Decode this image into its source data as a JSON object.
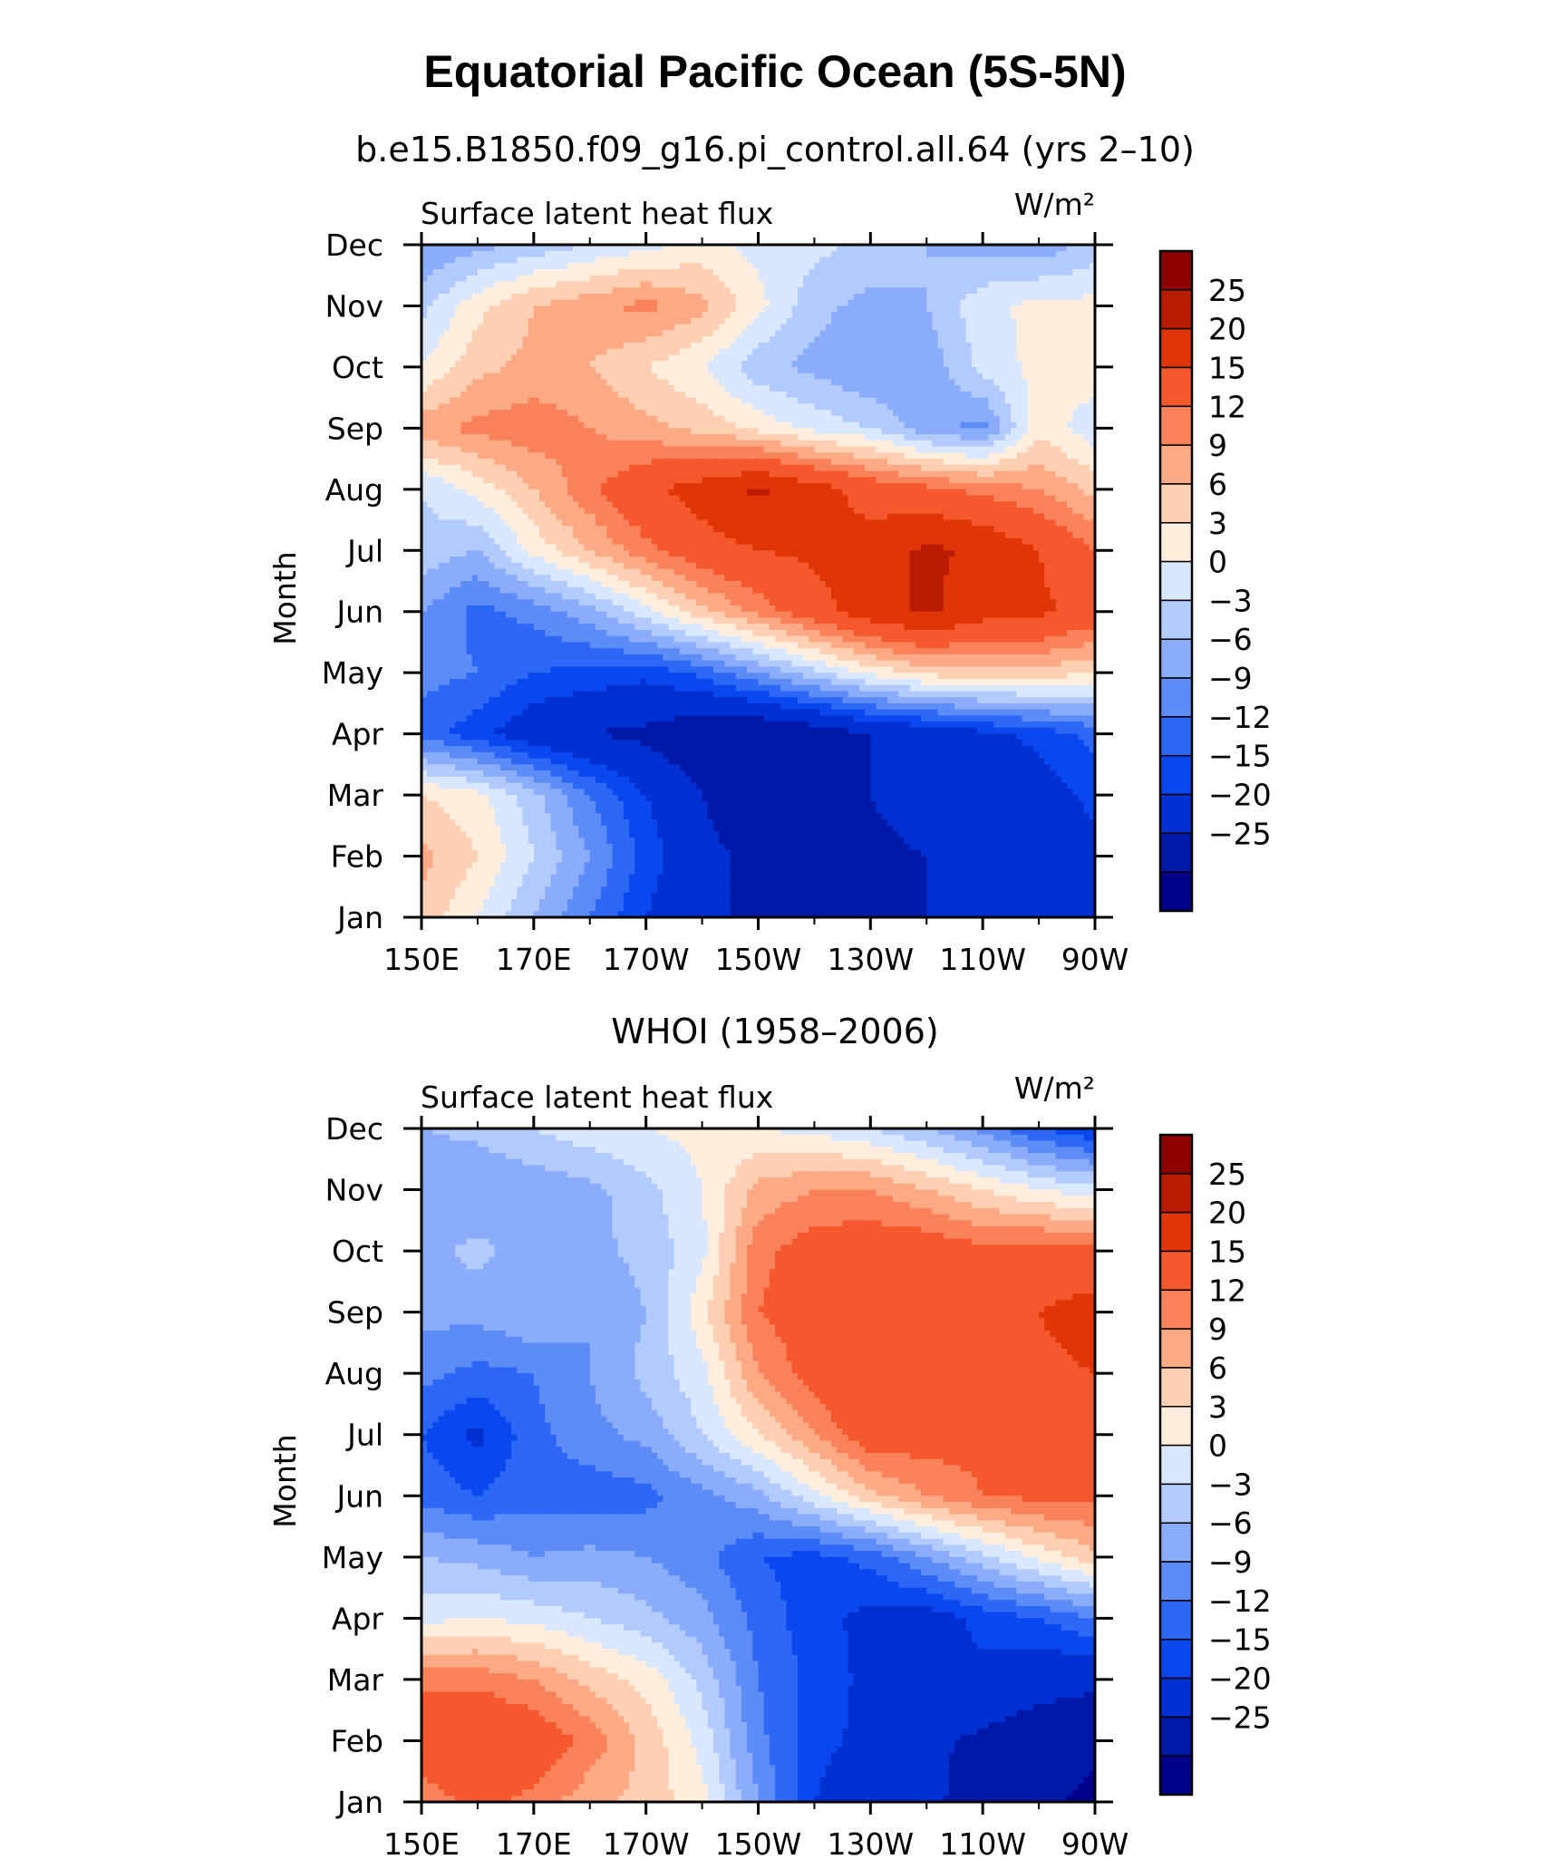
{
  "title": "Equatorial Pacific Ocean (5S-5N)",
  "colors": {
    "levels": [
      "#00008b",
      "#0019a8",
      "#0030d2",
      "#0a47ef",
      "#2c68f5",
      "#5d8cf7",
      "#8aacfa",
      "#b3cbfc",
      "#d9e8ff",
      "#ffeedd",
      "#fdcfb3",
      "#fbaa85",
      "#f9825a",
      "#f5582d",
      "#e03506",
      "#ba1c00",
      "#8c0000"
    ]
  },
  "chart_data": [
    {
      "type": "heatmap",
      "title": "b.e15.B1850.f09_g16.pi_control.all.64 (yrs 2–10)",
      "left_label": "Surface latent heat flux",
      "right_label": "W/m²",
      "ylabel": "Month",
      "xlabel": "",
      "x_ticks": [
        "150E",
        "170E",
        "170W",
        "150W",
        "130W",
        "110W",
        "90W"
      ],
      "x_tick_values": [
        150,
        170,
        190,
        210,
        230,
        250,
        270
      ],
      "xlim": [
        150,
        270
      ],
      "y_ticks": [
        "Jan",
        "Feb",
        "Mar",
        "Apr",
        "May",
        "Jun",
        "Jul",
        "Aug",
        "Sep",
        "Oct",
        "Nov",
        "Dec"
      ],
      "ylim": [
        1,
        12
      ],
      "contour_levels": [
        -25,
        -20,
        -15,
        -12,
        -9,
        -6,
        -3,
        0,
        3,
        6,
        9,
        12,
        15,
        20,
        25
      ],
      "colorbar_labels": [
        "25",
        "20",
        "15",
        "12",
        "9",
        "6",
        "3",
        "0",
        "−3",
        "−6",
        "−9",
        "−12",
        "−15",
        "−20",
        "−25"
      ],
      "grid_lon": [
        150,
        160,
        170,
        180,
        190,
        200,
        210,
        220,
        230,
        240,
        250,
        260,
        270
      ],
      "grid_month": [
        1,
        2,
        3,
        4,
        5,
        6,
        7,
        8,
        9,
        10,
        11,
        12
      ],
      "z": [
        [
          8,
          3,
          -3,
          -9,
          -15,
          -19,
          -21,
          -22,
          -21,
          -20,
          -19,
          -19,
          -17
        ],
        [
          10,
          6,
          0,
          -6,
          -13,
          -19,
          -21,
          -22,
          -21,
          -20,
          -19,
          -20,
          -16
        ],
        [
          6,
          4,
          -2,
          -9,
          -15,
          -20,
          -23,
          -22,
          -20,
          -18,
          -18,
          -17,
          -14
        ],
        [
          -10,
          -14,
          -18,
          -20,
          -21,
          -24,
          -25,
          -23,
          -20,
          -18,
          -16,
          -14,
          -11
        ],
        [
          -8,
          -9,
          -12,
          -13,
          -14,
          -11,
          -6,
          -1,
          4,
          7,
          8,
          8,
          6
        ],
        [
          -6,
          -10,
          -8,
          -4,
          2,
          8,
          13,
          18,
          23,
          26,
          22,
          21,
          18
        ],
        [
          -1,
          -3,
          4,
          9,
          14,
          18,
          20,
          21,
          22,
          26,
          24,
          20,
          15
        ],
        [
          0,
          4,
          9,
          14,
          19,
          22,
          26,
          22,
          18,
          16,
          14,
          12,
          8
        ],
        [
          11,
          13,
          14,
          12,
          10,
          8,
          5,
          2,
          0,
          -5,
          -7,
          5,
          1
        ],
        [
          3,
          8,
          10,
          9,
          6,
          3,
          -2,
          -4,
          -6,
          -5,
          1,
          4,
          5
        ],
        [
          -1,
          5,
          9,
          11,
          13,
          10,
          4,
          -2,
          -4,
          -3,
          2,
          4,
          4
        ],
        [
          -6,
          -4,
          -2,
          0,
          2,
          4,
          2,
          1,
          -1,
          -3,
          -4,
          -5,
          -2
        ]
      ]
    },
    {
      "type": "heatmap",
      "title": "WHOI (1958–2006)",
      "left_label": "Surface latent heat flux",
      "right_label": "W/m²",
      "ylabel": "Month",
      "xlabel": "",
      "x_ticks": [
        "150E",
        "170E",
        "170W",
        "150W",
        "130W",
        "110W",
        "90W"
      ],
      "x_tick_values": [
        150,
        170,
        190,
        210,
        230,
        250,
        270
      ],
      "xlim": [
        150,
        270
      ],
      "y_ticks": [
        "Jan",
        "Feb",
        "Mar",
        "Apr",
        "May",
        "Jun",
        "Jul",
        "Aug",
        "Sep",
        "Oct",
        "Nov",
        "Dec"
      ],
      "ylim": [
        1,
        12
      ],
      "contour_levels": [
        -25,
        -20,
        -15,
        -12,
        -9,
        -6,
        -3,
        0,
        3,
        6,
        9,
        12,
        15,
        20,
        25
      ],
      "colorbar_labels": [
        "25",
        "20",
        "15",
        "12",
        "9",
        "6",
        "3",
        "0",
        "−3",
        "−6",
        "−9",
        "−12",
        "−15",
        "−20",
        "−25"
      ],
      "grid_lon": [
        150,
        160,
        170,
        180,
        190,
        200,
        210,
        220,
        230,
        240,
        250,
        260,
        270
      ],
      "grid_month": [
        1,
        2,
        3,
        4,
        5,
        6,
        7,
        8,
        9,
        10,
        11,
        12
      ],
      "z": [
        [
          13,
          16,
          14,
          10,
          8,
          4,
          -6,
          -15,
          -18,
          -19,
          -22,
          -24,
          -26
        ],
        [
          18,
          20,
          18,
          14,
          8,
          2,
          -8,
          -14,
          -16,
          -19,
          -21,
          -23,
          -24
        ],
        [
          14,
          14,
          12,
          8,
          5,
          -1,
          -9,
          -13,
          -16,
          -16,
          -16,
          -18,
          -19
        ],
        [
          2,
          3,
          2,
          0,
          -2,
          -5,
          -10,
          -14,
          -16,
          -17,
          -14,
          -12,
          -9
        ],
        [
          -3,
          -4,
          -6,
          -5,
          -6,
          -8,
          -12,
          -13,
          -11,
          -6,
          -1,
          4,
          8
        ],
        [
          -10,
          -12,
          -10,
          -11,
          -10,
          -7,
          -4,
          2,
          8,
          12,
          15,
          16,
          16
        ],
        [
          -12,
          -16,
          -10,
          -7,
          -5,
          0,
          6,
          12,
          18,
          17,
          16,
          18,
          18
        ],
        [
          -8,
          -10,
          -9,
          -6,
          -2,
          2,
          12,
          17,
          20,
          18,
          17,
          19,
          20
        ],
        [
          -5,
          -5,
          -3,
          -6,
          -3,
          5,
          15,
          17,
          20,
          17,
          18,
          20,
          22
        ],
        [
          -4,
          -2,
          -5,
          -4,
          -2,
          2,
          14,
          17,
          18,
          18,
          16,
          17,
          16
        ],
        [
          -6,
          -6,
          -5,
          -4,
          -1,
          3,
          10,
          12,
          12,
          9,
          6,
          3,
          1
        ],
        [
          -3,
          -2,
          0,
          2,
          3,
          4,
          3,
          2,
          0,
          -3,
          -7,
          -12,
          -15
        ]
      ]
    }
  ]
}
